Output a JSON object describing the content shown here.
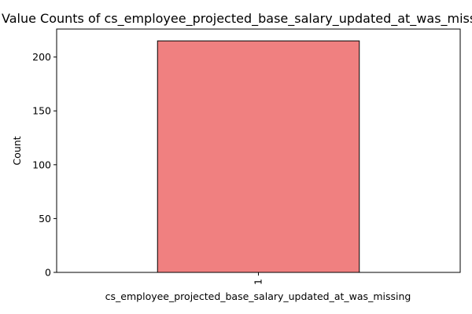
{
  "chart_data": {
    "type": "bar",
    "title": "Value Counts of cs_employee_projected_base_salary_updated_at_was_missing",
    "xlabel": "cs_employee_projected_base_salary_updated_at_was_missing",
    "ylabel": "Count",
    "categories": [
      "1"
    ],
    "values": [
      215
    ],
    "ylim": [
      0,
      226
    ],
    "yticks": [
      0,
      50,
      100,
      150,
      200
    ],
    "grid": false,
    "legend": "none",
    "bar_color": "#f08080",
    "bar_edge_color": "#000000"
  }
}
